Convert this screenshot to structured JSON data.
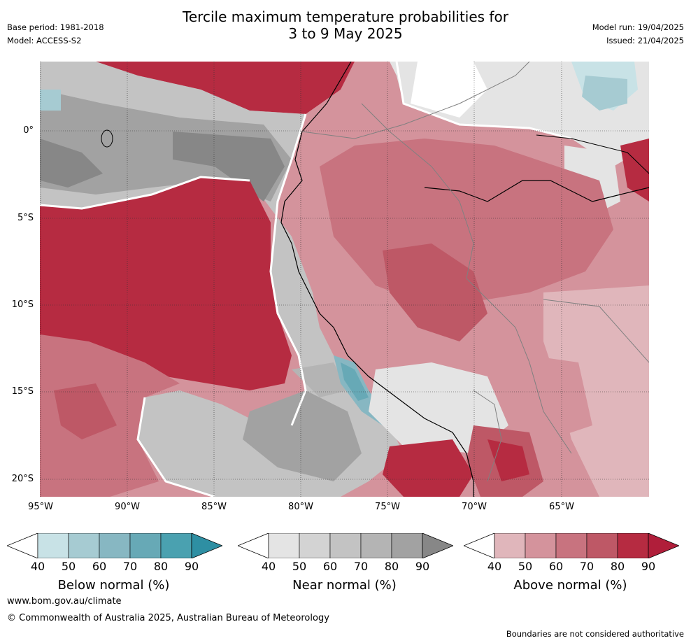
{
  "title_line1": "Tercile maximum temperature probabilities for",
  "title_line2": "3 to 9 May 2025",
  "base_period": "Base period: 1981-2018",
  "model": "Model: ACCESS-S2",
  "model_run": "Model run: 19/04/2025",
  "issued": "Issued: 21/04/2025",
  "lat_labels": [
    "0°",
    "5°S",
    "10°S",
    "15°S",
    "20°S"
  ],
  "lon_labels": [
    "95°W",
    "90°W",
    "85°W",
    "80°W",
    "75°W",
    "70°W",
    "65°W"
  ],
  "legends": [
    {
      "title": "Below normal (%)",
      "ticks": [
        "40",
        "50",
        "60",
        "70",
        "80",
        "90"
      ],
      "colors": [
        "#ffffff",
        "#c8e2e6",
        "#a6cbd2",
        "#87b7c2",
        "#67a9b6",
        "#4aa1b0",
        "#2e8fa3"
      ]
    },
    {
      "title": "Near normal (%)",
      "ticks": [
        "40",
        "50",
        "60",
        "70",
        "80",
        "90"
      ],
      "colors": [
        "#ffffff",
        "#e4e4e4",
        "#d3d3d3",
        "#c3c3c3",
        "#b4b4b4",
        "#a2a2a2",
        "#878787"
      ]
    },
    {
      "title": "Above normal (%)",
      "ticks": [
        "40",
        "50",
        "60",
        "70",
        "80",
        "90"
      ],
      "colors": [
        "#ffffff",
        "#e0b6bb",
        "#d4939c",
        "#c8737f",
        "#be5866",
        "#b62b41",
        "#b01e3a"
      ]
    }
  ],
  "website": "www.bom.gov.au/climate",
  "copyright": "© Commonwealth of Australia 2025, Australian Bureau of Meteorology",
  "disclaimer": "Boundaries are not considered authoritative"
}
